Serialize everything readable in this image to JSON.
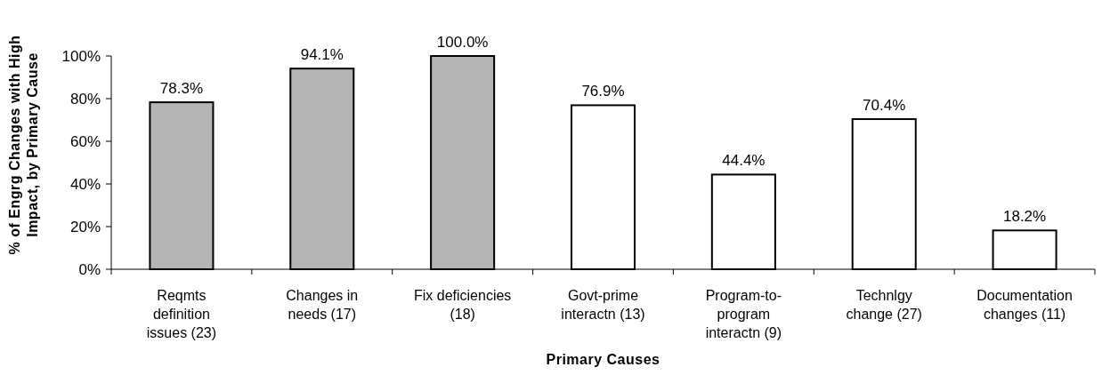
{
  "chart_data": {
    "type": "bar",
    "xlabel": "Primary Causes",
    "ylabel": "% of Engrg Changes with High\nImpact, by Primary Cause",
    "categories": [
      "Reqmts\ndefinition\nissues (23)",
      "Changes in\nneeds (17)",
      "Fix deficiencies\n(18)",
      "Govt-prime\ninteractn (13)",
      "Program-to-\nprogram\ninteractn (9)",
      "Technlgy\nchange (27)",
      "Documentation\nchanges (11)"
    ],
    "values": [
      78.3,
      94.1,
      100.0,
      76.9,
      44.4,
      70.4,
      18.2
    ],
    "colors": [
      "#b4b4b4",
      "#b4b4b4",
      "#b4b4b4",
      "#ffffff",
      "#ffffff",
      "#ffffff",
      "#ffffff"
    ],
    "value_labels": [
      "78.3%",
      "94.1%",
      "100.0%",
      "76.9%",
      "44.4%",
      "70.4%",
      "18.2%"
    ],
    "ylim": [
      0,
      100
    ],
    "yticks": [
      {
        "value": 0,
        "label": "0%"
      },
      {
        "value": 20,
        "label": "20%"
      },
      {
        "value": 40,
        "label": "40%"
      },
      {
        "value": 60,
        "label": "60%"
      },
      {
        "value": 80,
        "label": "80%"
      },
      {
        "value": 100,
        "label": "100%"
      }
    ],
    "grid": false
  }
}
